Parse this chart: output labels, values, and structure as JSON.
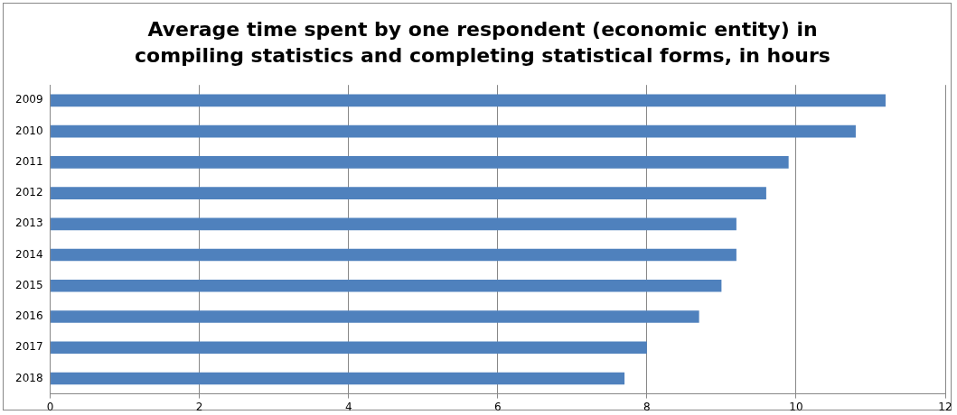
{
  "chart_data": {
    "type": "bar",
    "orientation": "horizontal",
    "title": "Average time spent by one respondent (economic entity) in compiling statistics and completing statistical forms, in hours",
    "categories": [
      "2009",
      "2010",
      "2011",
      "2012",
      "2013",
      "2014",
      "2015",
      "2016",
      "2017",
      "2018"
    ],
    "values": [
      11.2,
      10.8,
      9.9,
      9.6,
      9.2,
      9.2,
      9.0,
      8.7,
      8.0,
      7.7
    ],
    "color": "#4f81bd",
    "xlim": [
      0,
      12
    ],
    "xticks": [
      0,
      2,
      4,
      6,
      8,
      10,
      12
    ],
    "grid": "x",
    "legend": false
  }
}
